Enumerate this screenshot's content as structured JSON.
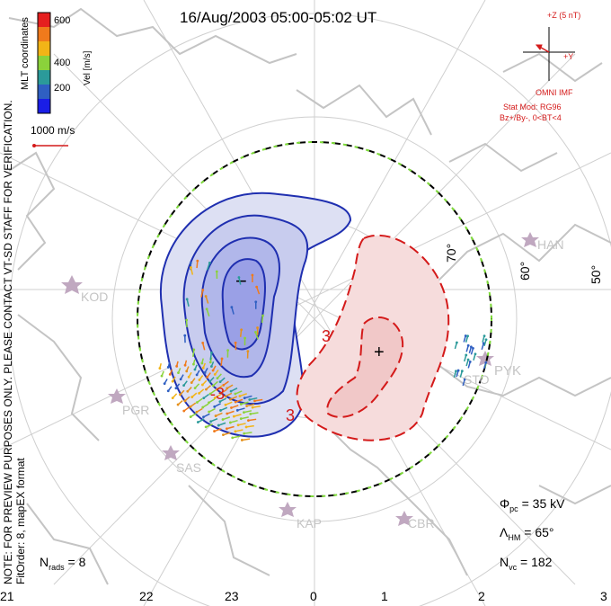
{
  "title": "16/Aug/2003 05:00-05:02 UT",
  "side_note": "NOTE: FOR PREVIEW PURPOSES ONLY. PLEASE CONTACT VT-SD STAFF FOR VERIFICATION.",
  "fit_info": "FitOrder: 8, mapEX format",
  "coord_label": "MLT coordinates",
  "colorbar": {
    "label": "Vel [m/s]",
    "ticks": [
      "600",
      "400",
      "200"
    ],
    "colors": [
      "#e51f1f",
      "#f07a1c",
      "#f2b417",
      "#8bd23b",
      "#2b9a9a",
      "#2f5fc2",
      "#1a1ee6"
    ]
  },
  "vector_scale": "1000 m/s",
  "imf": {
    "z_label": "+Z (5 nT)",
    "y_label": "+Y",
    "source": "OMNI IMF",
    "model": "Stat Mod: RG96",
    "condition": "Bz+/By-, 0<BT<4"
  },
  "latitude_labels": [
    "70°",
    "60°",
    "50°"
  ],
  "mlt_labels": [
    "21",
    "22",
    "23",
    "0",
    "1",
    "2",
    "3"
  ],
  "stations": [
    "KOD",
    "PGR",
    "SAS",
    "KAP",
    "CBR",
    "PYK",
    "HAN",
    "STO"
  ],
  "contour_labels": [
    "-3",
    "3"
  ],
  "extrema_marks": [
    "−",
    "+"
  ],
  "stats": {
    "phi_pc": "35 kV",
    "lambda_hm": "65°",
    "n_vc": "182",
    "n_rads": "8"
  },
  "accent_colors": {
    "negative": "#1f2fb0",
    "positive": "#d41a1a",
    "land": "#c8c8c8"
  }
}
